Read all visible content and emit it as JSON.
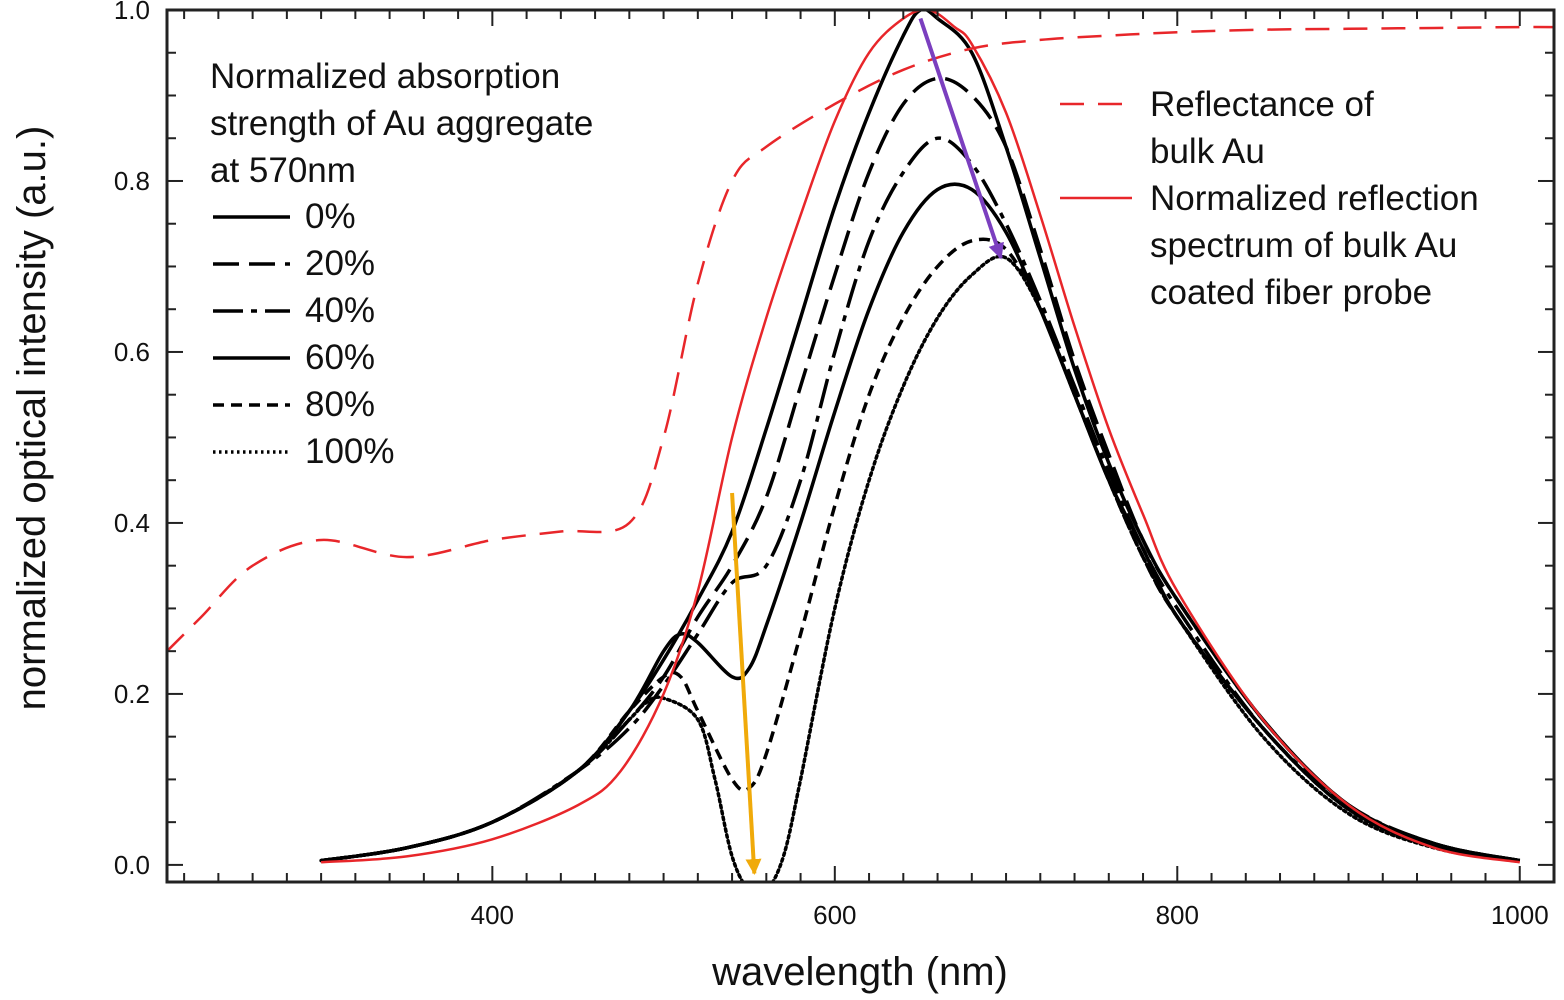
{
  "chart_data": {
    "type": "line",
    "xlabel": "wavelength (nm)",
    "ylabel": "normalized optical intensity (a.u.)",
    "xlim": [
      210,
      1020
    ],
    "ylim": [
      -0.02,
      1.0
    ],
    "xticks": [
      400,
      600,
      800,
      1000
    ],
    "xtick_labels": [
      "400",
      "600",
      "800",
      "1000"
    ],
    "yticks": [
      0.0,
      0.2,
      0.4,
      0.6,
      0.8,
      1.0
    ],
    "ytick_labels": [
      "0.0",
      "0.2",
      "0.4",
      "0.6",
      "0.8",
      "1.0"
    ],
    "grid": false,
    "legend_left": {
      "title_lines": [
        "Normalized absorption",
        "strength of Au aggregate",
        "at 570nm"
      ],
      "entries": [
        "0%",
        "20%",
        "40%",
        "60%",
        "80%",
        "100%"
      ]
    },
    "legend_right": [
      {
        "label_lines": [
          "Reflectance of",
          "bulk Au"
        ],
        "color": "#e8262a",
        "style": "dashed"
      },
      {
        "label_lines": [
          "Normalized reflection",
          "spectrum of bulk Au",
          "coated fiber probe"
        ],
        "color": "#e8262a",
        "style": "solid"
      }
    ],
    "series": [
      {
        "name": "0%",
        "color": "#000000",
        "style": "solid",
        "x": [
          300,
          350,
          400,
          450,
          480,
          500,
          520,
          540,
          560,
          580,
          600,
          620,
          640,
          650,
          660,
          680,
          700,
          720,
          740,
          760,
          780,
          800,
          850,
          900,
          950,
          1000
        ],
        "y": [
          0.005,
          0.02,
          0.05,
          0.11,
          0.18,
          0.24,
          0.31,
          0.39,
          0.51,
          0.64,
          0.77,
          0.88,
          0.97,
          1.0,
          0.99,
          0.95,
          0.84,
          0.71,
          0.58,
          0.47,
          0.38,
          0.31,
          0.17,
          0.07,
          0.025,
          0.005
        ]
      },
      {
        "name": "20%",
        "color": "#000000",
        "style": "long-dash",
        "x": [
          300,
          350,
          400,
          450,
          480,
          500,
          520,
          540,
          560,
          580,
          600,
          620,
          640,
          660,
          680,
          700,
          720,
          740,
          760,
          780,
          800,
          850,
          900,
          950,
          1000
        ],
        "y": [
          0.005,
          0.02,
          0.05,
          0.11,
          0.17,
          0.22,
          0.29,
          0.35,
          0.43,
          0.56,
          0.69,
          0.81,
          0.89,
          0.92,
          0.9,
          0.84,
          0.72,
          0.59,
          0.48,
          0.38,
          0.31,
          0.17,
          0.07,
          0.025,
          0.005
        ]
      },
      {
        "name": "40%",
        "color": "#000000",
        "style": "dash-dot",
        "x": [
          300,
          350,
          400,
          450,
          480,
          500,
          520,
          540,
          560,
          580,
          600,
          620,
          640,
          660,
          680,
          700,
          720,
          740,
          760,
          780,
          800,
          850,
          900,
          950,
          1000
        ],
        "y": [
          0.005,
          0.02,
          0.05,
          0.11,
          0.16,
          0.21,
          0.27,
          0.33,
          0.35,
          0.45,
          0.6,
          0.73,
          0.81,
          0.85,
          0.82,
          0.75,
          0.66,
          0.56,
          0.46,
          0.37,
          0.3,
          0.16,
          0.07,
          0.025,
          0.005
        ]
      },
      {
        "name": "60%",
        "color": "#000000",
        "style": "solid",
        "x": [
          300,
          350,
          400,
          450,
          480,
          500,
          510,
          520,
          540,
          550,
          560,
          580,
          600,
          620,
          640,
          660,
          680,
          700,
          720,
          740,
          760,
          780,
          800,
          850,
          900,
          950,
          1000
        ],
        "y": [
          0.005,
          0.02,
          0.05,
          0.11,
          0.18,
          0.25,
          0.27,
          0.26,
          0.22,
          0.23,
          0.28,
          0.4,
          0.53,
          0.65,
          0.74,
          0.79,
          0.79,
          0.74,
          0.65,
          0.55,
          0.45,
          0.37,
          0.29,
          0.16,
          0.065,
          0.022,
          0.005
        ]
      },
      {
        "name": "80%",
        "color": "#000000",
        "style": "short-dash",
        "x": [
          300,
          350,
          400,
          450,
          480,
          500,
          510,
          520,
          540,
          550,
          560,
          580,
          600,
          620,
          640,
          660,
          680,
          700,
          720,
          740,
          760,
          780,
          800,
          850,
          900,
          950,
          1000
        ],
        "y": [
          0.005,
          0.02,
          0.05,
          0.11,
          0.18,
          0.22,
          0.22,
          0.18,
          0.1,
          0.09,
          0.13,
          0.27,
          0.42,
          0.55,
          0.64,
          0.7,
          0.73,
          0.72,
          0.65,
          0.55,
          0.45,
          0.36,
          0.29,
          0.16,
          0.065,
          0.022,
          0.005
        ]
      },
      {
        "name": "100%",
        "color": "#000000",
        "style": "dotted",
        "x": [
          300,
          350,
          400,
          450,
          480,
          490,
          500,
          520,
          530,
          540,
          550,
          560,
          570,
          580,
          600,
          620,
          640,
          660,
          680,
          700,
          720,
          740,
          760,
          780,
          800,
          850,
          900,
          950,
          1000
        ],
        "y": [
          0.005,
          0.02,
          0.05,
          0.11,
          0.17,
          0.19,
          0.195,
          0.17,
          0.1,
          0.01,
          -0.03,
          -0.03,
          0.01,
          0.1,
          0.3,
          0.45,
          0.56,
          0.64,
          0.69,
          0.71,
          0.65,
          0.55,
          0.45,
          0.36,
          0.29,
          0.15,
          0.06,
          0.02,
          0.004
        ]
      },
      {
        "name": "Reflectance of bulk Au",
        "color": "#e8262a",
        "style": "dashed",
        "x": [
          210,
          230,
          260,
          300,
          350,
          400,
          440,
          480,
          500,
          520,
          540,
          560,
          600,
          640,
          680,
          720,
          760,
          800,
          850,
          900,
          950,
          1000,
          1020
        ],
        "y": [
          0.25,
          0.29,
          0.35,
          0.38,
          0.36,
          0.38,
          0.39,
          0.4,
          0.5,
          0.68,
          0.8,
          0.84,
          0.89,
          0.93,
          0.955,
          0.965,
          0.97,
          0.974,
          0.977,
          0.978,
          0.979,
          0.98,
          0.98
        ]
      },
      {
        "name": "Normalized reflection spectrum of bulk Au coated fiber probe",
        "color": "#e8262a",
        "style": "solid",
        "x": [
          300,
          350,
          400,
          450,
          475,
          500,
          520,
          540,
          560,
          580,
          600,
          620,
          640,
          655,
          670,
          680,
          700,
          720,
          740,
          760,
          780,
          800,
          850,
          900,
          950,
          1000
        ],
        "y": [
          0.003,
          0.01,
          0.03,
          0.07,
          0.11,
          0.2,
          0.32,
          0.5,
          0.64,
          0.76,
          0.87,
          0.95,
          0.99,
          1.0,
          0.98,
          0.96,
          0.88,
          0.76,
          0.63,
          0.51,
          0.41,
          0.32,
          0.17,
          0.07,
          0.02,
          0.003
        ]
      }
    ],
    "annotations": [
      {
        "type": "arrow",
        "color": "#f0aa0a",
        "from": [
          540,
          0.435
        ],
        "to": [
          553,
          -0.01
        ]
      },
      {
        "type": "arrow",
        "color": "#7b3fbf",
        "from": [
          650,
          0.99
        ],
        "to": [
          697,
          0.71
        ]
      }
    ]
  }
}
